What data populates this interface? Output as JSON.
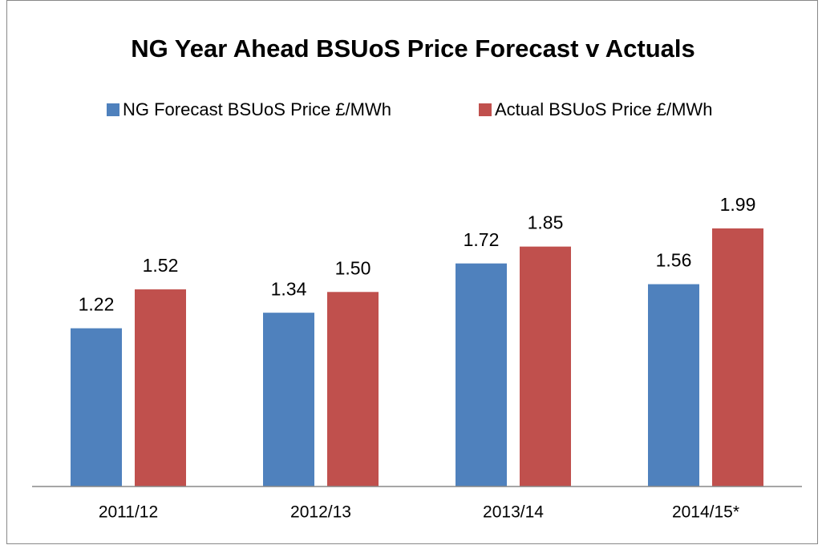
{
  "chart_data": {
    "type": "bar",
    "title": "NG Year Ahead BSUoS Price Forecast v Actuals",
    "categories": [
      "2011/12",
      "2012/13",
      "2013/14",
      "2014/15*"
    ],
    "series": [
      {
        "name": "NG Forecast BSUoS Price £/MWh",
        "color": "#4f81bd",
        "values": [
          1.22,
          1.34,
          1.72,
          1.56
        ],
        "value_labels": [
          "1.22",
          "1.34",
          "1.72",
          "1.56"
        ]
      },
      {
        "name": "Actual BSUoS Price £/MWh",
        "color": "#c0504d",
        "values": [
          1.52,
          1.5,
          1.85,
          1.99
        ],
        "value_labels": [
          "1.52",
          "1.50",
          "1.85",
          "1.99"
        ]
      }
    ],
    "legend": "top"
  }
}
